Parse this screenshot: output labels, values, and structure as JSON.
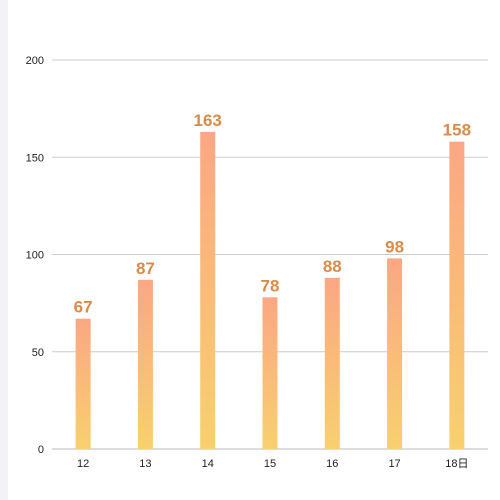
{
  "chart_data": {
    "type": "bar",
    "title": "",
    "xlabel": "",
    "ylabel": "",
    "categories": [
      "12",
      "13",
      "14",
      "15",
      "16",
      "17",
      "18日"
    ],
    "values": [
      67,
      87,
      163,
      78,
      88,
      98,
      158
    ],
    "ylim": [
      0,
      200
    ],
    "yticks": [
      "0",
      "50",
      "100",
      "150",
      "200"
    ],
    "grid": true,
    "legend": "none",
    "colors": {
      "bar_top": "#fba784",
      "bar_bottom": "#f8d06e",
      "label": "#d98c4a",
      "grid": "#cccccc",
      "axis": "#bbbbbb"
    }
  }
}
